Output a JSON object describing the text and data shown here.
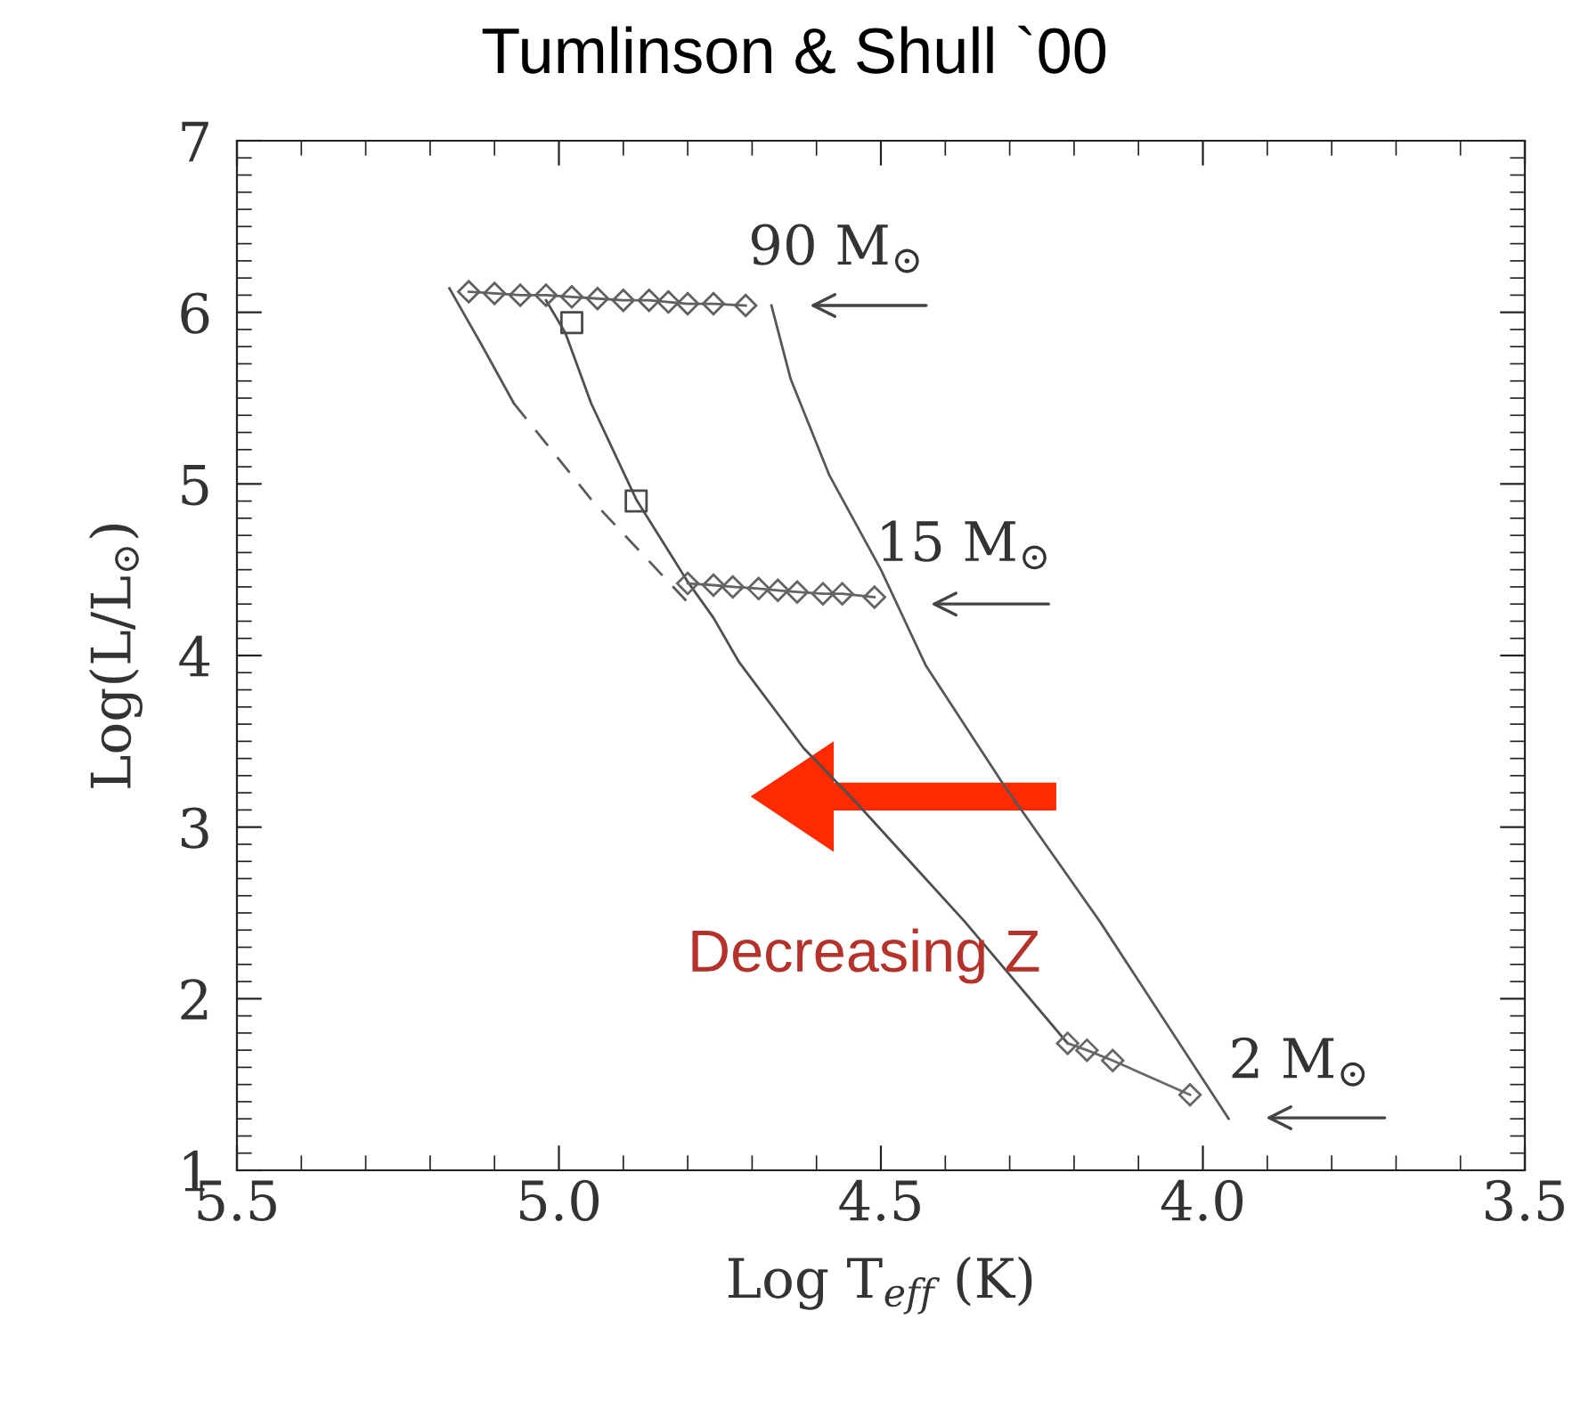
{
  "chart_data": {
    "type": "line",
    "title": "Tumlinson & Shull `00",
    "xlabel": "Log T$_{eff}$ (K)",
    "ylabel": "Log(L/L$_{⊙}$)",
    "xlim": [
      5.5,
      3.5
    ],
    "xticks": [
      {
        "value": 5.5,
        "label": "5.5"
      },
      {
        "value": 5.0,
        "label": "5.0"
      },
      {
        "value": 4.5,
        "label": "4.5"
      },
      {
        "value": 4.0,
        "label": "4.0"
      },
      {
        "value": 3.5,
        "label": "3.5"
      }
    ],
    "ylim": [
      1,
      7
    ],
    "yticks": [
      1,
      2,
      3,
      4,
      5,
      6,
      7
    ],
    "grid": false,
    "legend": false,
    "series": [
      {
        "color": "#555555",
        "marker": "none",
        "line_style": "solid",
        "x": [
          5.17,
          5.12,
          5.07
        ],
        "values": [
          6.14,
          5.81,
          5.47
        ]
      },
      {
        "color": "#5a5a5a",
        "marker": "none",
        "line_style": "dashed",
        "x": [
          5.07,
          4.95,
          4.8
        ],
        "values": [
          5.47,
          4.91,
          4.31
        ]
      },
      {
        "color": "#4f4f4f",
        "marker": "none",
        "line_style": "solid",
        "x": [
          5.02,
          4.99,
          4.95,
          4.88,
          4.8,
          4.76,
          4.72,
          4.62,
          4.54,
          4.37,
          4.21
        ],
        "values": [
          6.07,
          5.88,
          5.47,
          4.91,
          4.43,
          4.22,
          3.96,
          3.46,
          3.15,
          2.45,
          1.74
        ]
      },
      {
        "color": "#575757",
        "marker": "none",
        "line_style": "solid",
        "x": [
          4.67,
          4.64,
          4.58,
          4.5,
          4.43,
          4.31,
          4.16,
          3.96
        ],
        "values": [
          6.04,
          5.61,
          5.05,
          4.5,
          3.94,
          3.25,
          2.45,
          1.3
        ]
      },
      {
        "color": "#606060",
        "marker": "diamond",
        "line_style": "solid",
        "x": [
          5.14,
          5.1,
          5.06,
          5.02,
          4.98,
          4.94,
          4.9,
          4.86,
          4.83,
          4.8,
          4.76,
          4.71
        ],
        "values": [
          6.12,
          6.11,
          6.1,
          6.1,
          6.09,
          6.08,
          6.07,
          6.07,
          6.06,
          6.05,
          6.05,
          6.04
        ]
      },
      {
        "color": "#646464",
        "marker": "diamond",
        "line_style": "solid",
        "x": [
          4.8,
          4.76,
          4.73,
          4.69,
          4.66,
          4.63,
          4.59,
          4.56,
          4.51
        ],
        "values": [
          4.42,
          4.41,
          4.4,
          4.39,
          4.38,
          4.37,
          4.36,
          4.36,
          4.34
        ]
      },
      {
        "color": "#686868",
        "marker": "diamond",
        "line_style": "solid",
        "x": [
          4.21,
          4.18,
          4.14,
          4.02
        ],
        "values": [
          1.74,
          1.7,
          1.64,
          1.44
        ]
      },
      {
        "type": "scatter",
        "color": "#4a4a4a",
        "marker": "square",
        "x": [
          4.98,
          4.88
        ],
        "values": [
          5.94,
          4.9
        ]
      }
    ],
    "annotations": [
      "90 M$_{⊙}$",
      "15 M$_{⊙}$",
      "2 M$_{⊙}$",
      "Decreasing Z"
    ]
  }
}
